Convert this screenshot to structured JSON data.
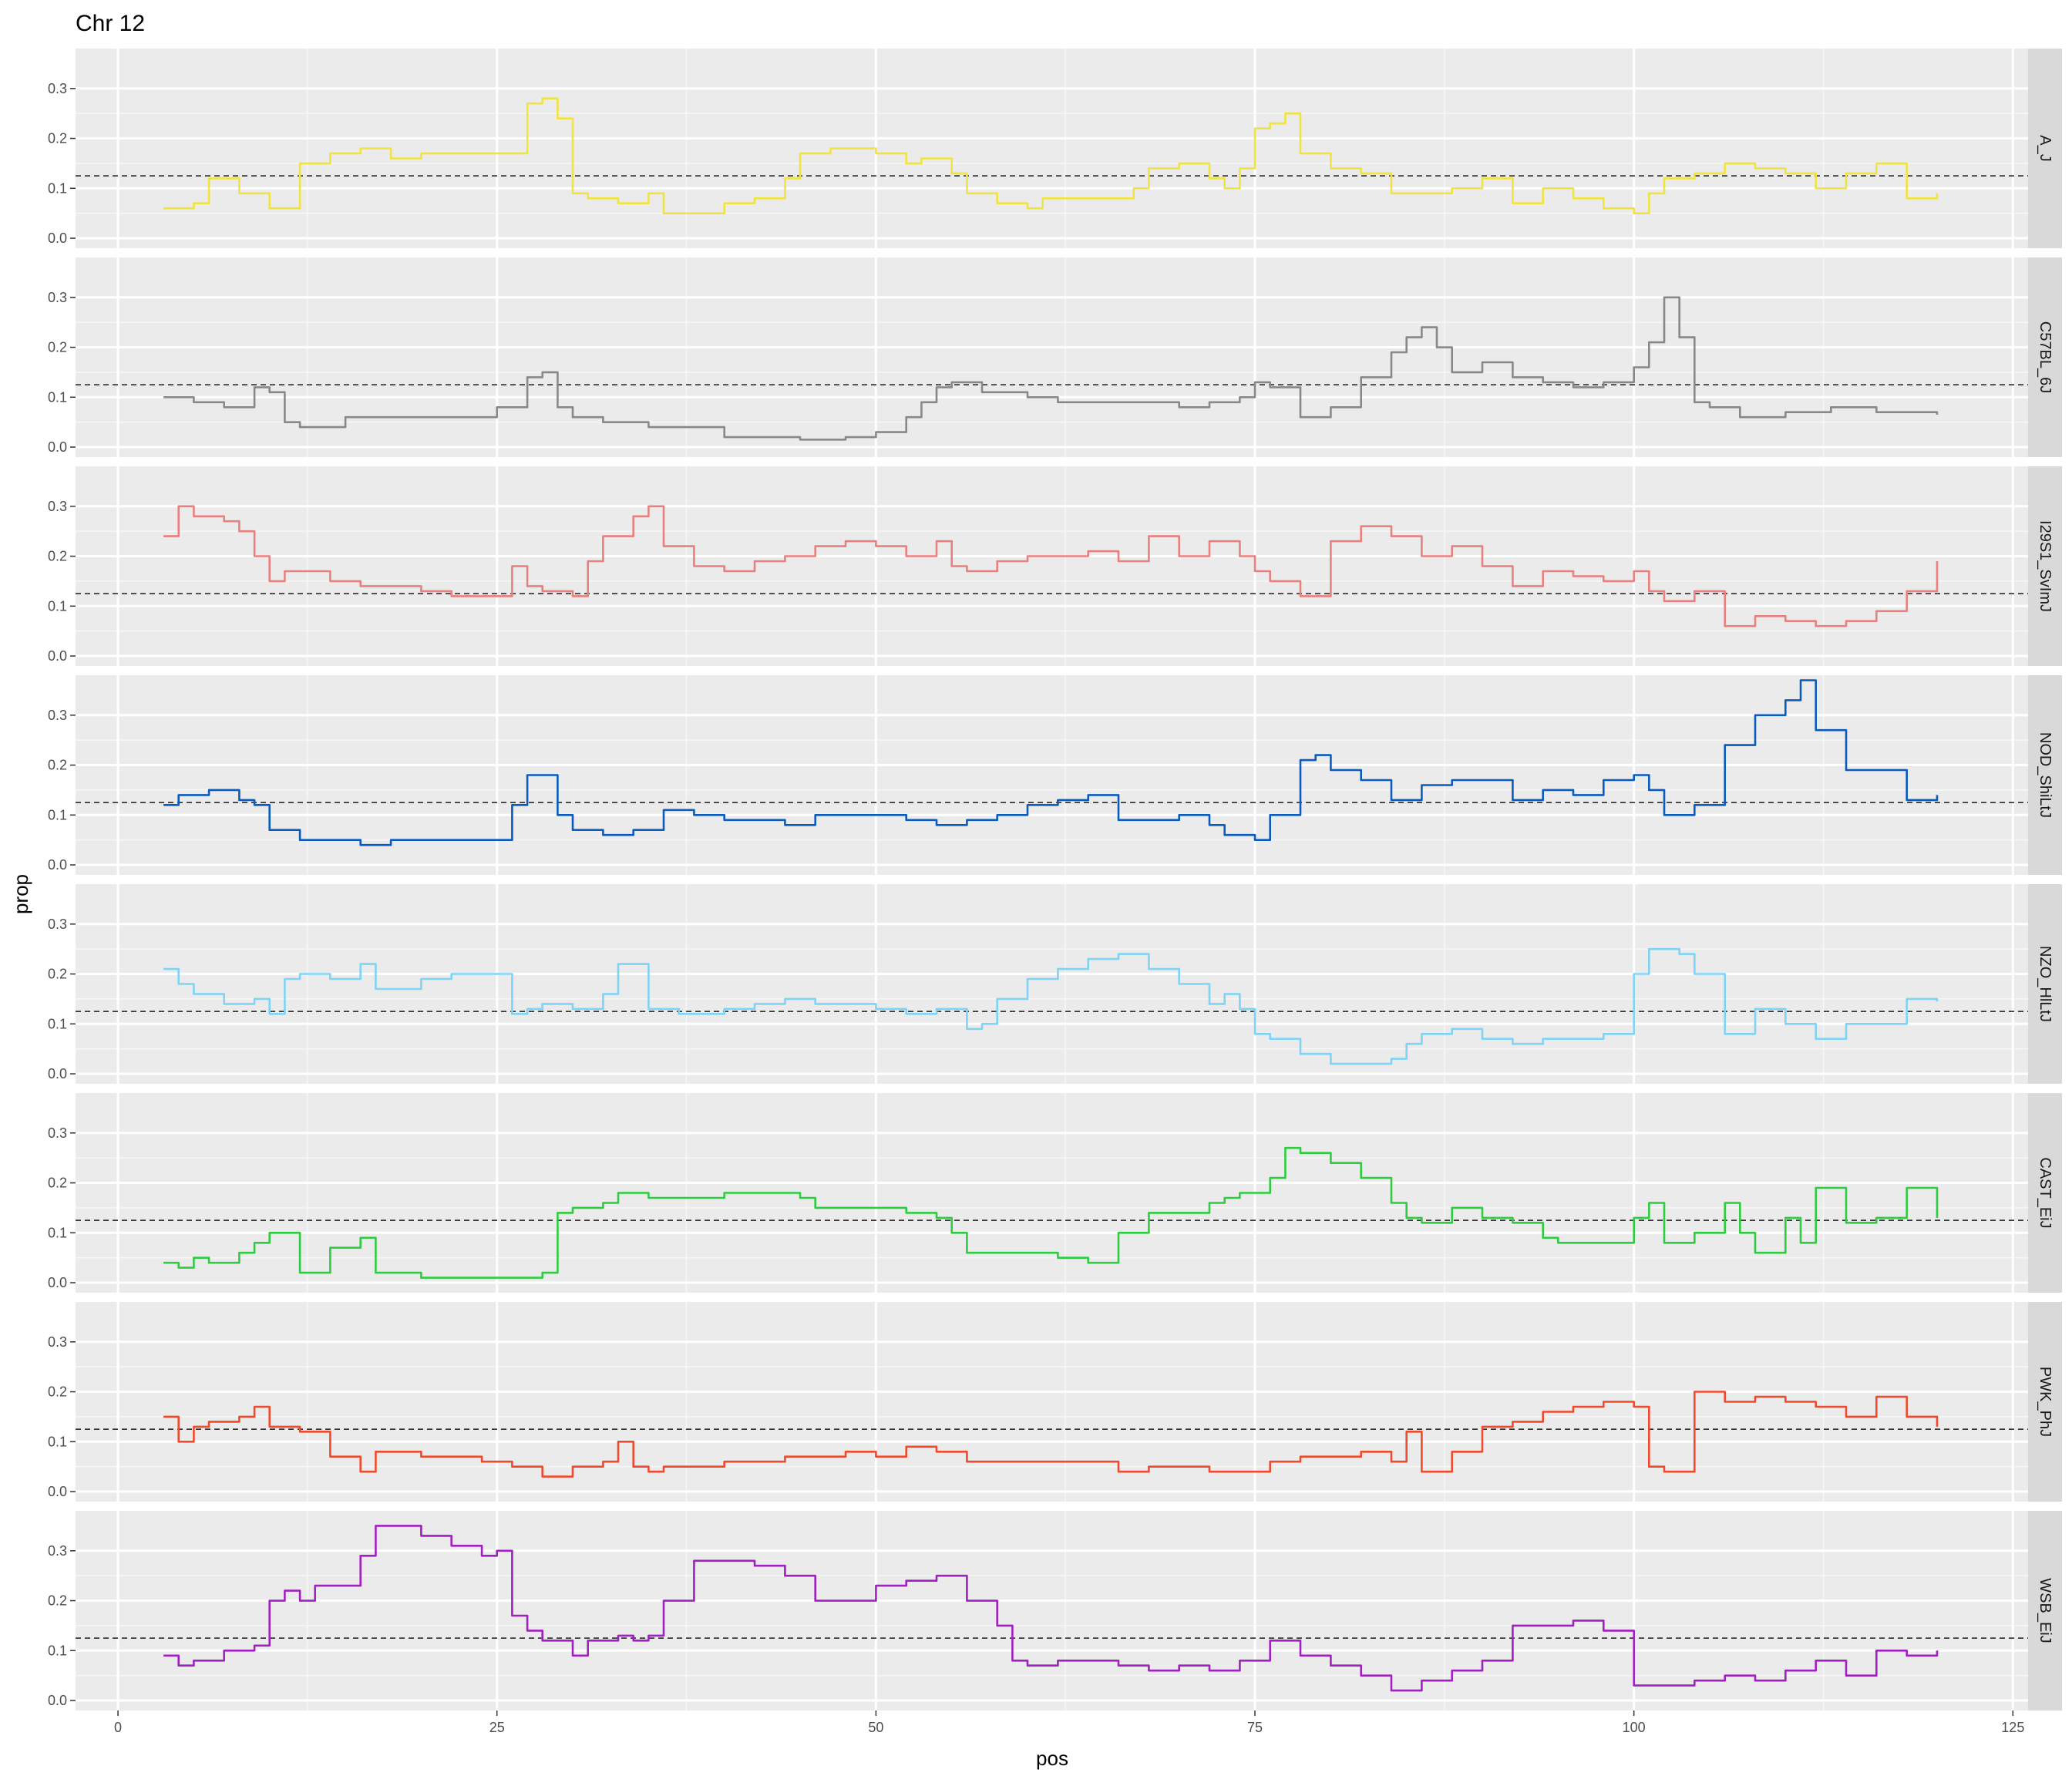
{
  "chart_data": {
    "type": "line",
    "title": "Chr 12",
    "xlabel": "pos",
    "ylabel": "prop",
    "xlim": [
      -2.8,
      126
    ],
    "ylim": [
      -0.02,
      0.38
    ],
    "x_ticks": [
      0,
      25,
      50,
      75,
      100,
      125
    ],
    "x_tick_labels": [
      "0",
      "25",
      "50",
      "75",
      "100",
      "125"
    ],
    "y_ticks": [
      0,
      0.1,
      0.2,
      0.3
    ],
    "y_tick_labels": [
      "0.0",
      "0.1",
      "0.2",
      "0.3"
    ],
    "reference_line": 0.125,
    "grid": true,
    "legend": "none",
    "facets": "rows",
    "series": [
      {
        "name": "A_J",
        "color": "#F0E442",
        "x": [
          3,
          5,
          6,
          8,
          10,
          11,
          12,
          14,
          16,
          18,
          20,
          22,
          24,
          26,
          27,
          28,
          29,
          30,
          31,
          33,
          35,
          36,
          38,
          40,
          42,
          44,
          45,
          47,
          50,
          52,
          53,
          55,
          56,
          58,
          60,
          61,
          63,
          65,
          67,
          68,
          70,
          72,
          73,
          74,
          75,
          76,
          77,
          78,
          80,
          82,
          84,
          86,
          88,
          90,
          91,
          92,
          94,
          96,
          98,
          100,
          101,
          102,
          104,
          106,
          108,
          110,
          112,
          114,
          116,
          118,
          120
        ],
        "y": [
          0.06,
          0.07,
          0.12,
          0.09,
          0.06,
          0.06,
          0.15,
          0.17,
          0.18,
          0.16,
          0.17,
          0.17,
          0.17,
          0.17,
          0.27,
          0.28,
          0.24,
          0.09,
          0.08,
          0.07,
          0.09,
          0.05,
          0.05,
          0.07,
          0.08,
          0.12,
          0.17,
          0.18,
          0.17,
          0.15,
          0.16,
          0.13,
          0.09,
          0.07,
          0.06,
          0.08,
          0.08,
          0.08,
          0.1,
          0.14,
          0.15,
          0.12,
          0.1,
          0.14,
          0.22,
          0.23,
          0.25,
          0.17,
          0.14,
          0.13,
          0.09,
          0.09,
          0.1,
          0.12,
          0.12,
          0.07,
          0.1,
          0.08,
          0.06,
          0.05,
          0.09,
          0.12,
          0.13,
          0.15,
          0.14,
          0.13,
          0.1,
          0.13,
          0.15,
          0.08,
          0.09
        ]
      },
      {
        "name": "C57BL_6J",
        "color": "#888888",
        "x": [
          3,
          5,
          7,
          9,
          10,
          11,
          12,
          13,
          15,
          16,
          18,
          20,
          22,
          25,
          27,
          28,
          29,
          30,
          32,
          35,
          38,
          40,
          42,
          45,
          48,
          50,
          52,
          53,
          54,
          55,
          57,
          60,
          62,
          65,
          68,
          70,
          72,
          74,
          75,
          76,
          78,
          80,
          82,
          84,
          85,
          86,
          87,
          88,
          90,
          92,
          94,
          96,
          98,
          100,
          101,
          102,
          103,
          104,
          105,
          107,
          110,
          113,
          116,
          118,
          120
        ],
        "y": [
          0.1,
          0.09,
          0.08,
          0.12,
          0.11,
          0.05,
          0.04,
          0.04,
          0.06,
          0.06,
          0.06,
          0.06,
          0.06,
          0.08,
          0.14,
          0.15,
          0.08,
          0.06,
          0.05,
          0.04,
          0.04,
          0.02,
          0.02,
          0.015,
          0.02,
          0.03,
          0.06,
          0.09,
          0.12,
          0.13,
          0.11,
          0.1,
          0.09,
          0.09,
          0.09,
          0.08,
          0.09,
          0.1,
          0.13,
          0.12,
          0.06,
          0.08,
          0.14,
          0.19,
          0.22,
          0.24,
          0.2,
          0.15,
          0.17,
          0.14,
          0.13,
          0.12,
          0.13,
          0.16,
          0.21,
          0.3,
          0.22,
          0.09,
          0.08,
          0.06,
          0.07,
          0.08,
          0.07,
          0.07,
          0.065
        ]
      },
      {
        "name": "I29S1_SvImJ",
        "color": "#E8807F",
        "x": [
          3,
          4,
          5,
          7,
          8,
          9,
          10,
          11,
          12,
          14,
          16,
          18,
          20,
          22,
          25,
          26,
          27,
          28,
          30,
          31,
          32,
          34,
          35,
          36,
          38,
          40,
          42,
          44,
          46,
          48,
          50,
          52,
          54,
          55,
          56,
          58,
          60,
          62,
          64,
          66,
          68,
          70,
          72,
          74,
          75,
          76,
          78,
          80,
          82,
          84,
          86,
          88,
          90,
          92,
          94,
          96,
          98,
          100,
          101,
          102,
          104,
          106,
          108,
          110,
          112,
          114,
          116,
          118,
          120
        ],
        "y": [
          0.24,
          0.3,
          0.28,
          0.27,
          0.25,
          0.2,
          0.15,
          0.17,
          0.17,
          0.15,
          0.14,
          0.14,
          0.13,
          0.12,
          0.12,
          0.18,
          0.14,
          0.13,
          0.12,
          0.19,
          0.24,
          0.28,
          0.3,
          0.22,
          0.18,
          0.17,
          0.19,
          0.2,
          0.22,
          0.23,
          0.22,
          0.2,
          0.23,
          0.18,
          0.17,
          0.19,
          0.2,
          0.2,
          0.21,
          0.19,
          0.24,
          0.2,
          0.23,
          0.2,
          0.17,
          0.15,
          0.12,
          0.23,
          0.26,
          0.24,
          0.2,
          0.22,
          0.18,
          0.14,
          0.17,
          0.16,
          0.15,
          0.17,
          0.13,
          0.11,
          0.13,
          0.06,
          0.08,
          0.07,
          0.06,
          0.07,
          0.09,
          0.13,
          0.19
        ]
      },
      {
        "name": "NOD_ShiLtJ",
        "color": "#0a5bbe",
        "x": [
          3,
          4,
          6,
          8,
          9,
          10,
          12,
          14,
          16,
          18,
          20,
          22,
          25,
          26,
          27,
          28,
          29,
          30,
          32,
          34,
          36,
          38,
          40,
          42,
          44,
          46,
          48,
          50,
          52,
          54,
          56,
          58,
          60,
          62,
          64,
          66,
          68,
          70,
          72,
          73,
          74,
          75,
          76,
          78,
          79,
          80,
          82,
          84,
          86,
          88,
          90,
          92,
          94,
          96,
          98,
          100,
          101,
          102,
          104,
          106,
          108,
          110,
          111,
          112,
          114,
          116,
          118,
          120
        ],
        "y": [
          0.12,
          0.14,
          0.15,
          0.13,
          0.12,
          0.07,
          0.05,
          0.05,
          0.04,
          0.05,
          0.05,
          0.05,
          0.05,
          0.12,
          0.18,
          0.18,
          0.1,
          0.07,
          0.06,
          0.07,
          0.11,
          0.1,
          0.09,
          0.09,
          0.08,
          0.1,
          0.1,
          0.1,
          0.09,
          0.08,
          0.09,
          0.1,
          0.12,
          0.13,
          0.14,
          0.09,
          0.09,
          0.1,
          0.08,
          0.06,
          0.06,
          0.05,
          0.1,
          0.21,
          0.22,
          0.19,
          0.17,
          0.13,
          0.16,
          0.17,
          0.17,
          0.13,
          0.15,
          0.14,
          0.17,
          0.18,
          0.15,
          0.1,
          0.12,
          0.24,
          0.3,
          0.33,
          0.37,
          0.27,
          0.19,
          0.19,
          0.13,
          0.14
        ]
      },
      {
        "name": "NZO_HlLtJ",
        "color": "#7FD3F5",
        "x": [
          3,
          4,
          5,
          7,
          9,
          10,
          11,
          12,
          14,
          16,
          17,
          18,
          20,
          22,
          24,
          25,
          26,
          27,
          28,
          30,
          32,
          33,
          35,
          37,
          40,
          42,
          44,
          46,
          48,
          50,
          52,
          54,
          56,
          57,
          58,
          60,
          62,
          64,
          66,
          68,
          70,
          72,
          73,
          74,
          75,
          76,
          78,
          80,
          82,
          84,
          85,
          86,
          88,
          90,
          92,
          94,
          96,
          98,
          100,
          101,
          102,
          103,
          104,
          106,
          108,
          110,
          112,
          114,
          116,
          118,
          120
        ],
        "y": [
          0.21,
          0.18,
          0.16,
          0.14,
          0.15,
          0.12,
          0.19,
          0.2,
          0.19,
          0.22,
          0.17,
          0.17,
          0.19,
          0.2,
          0.2,
          0.2,
          0.12,
          0.13,
          0.14,
          0.13,
          0.16,
          0.22,
          0.13,
          0.12,
          0.13,
          0.14,
          0.15,
          0.14,
          0.14,
          0.13,
          0.12,
          0.13,
          0.09,
          0.1,
          0.15,
          0.19,
          0.21,
          0.23,
          0.24,
          0.21,
          0.18,
          0.14,
          0.16,
          0.13,
          0.08,
          0.07,
          0.04,
          0.02,
          0.02,
          0.03,
          0.06,
          0.08,
          0.09,
          0.07,
          0.06,
          0.07,
          0.07,
          0.08,
          0.2,
          0.25,
          0.25,
          0.24,
          0.2,
          0.08,
          0.13,
          0.1,
          0.07,
          0.1,
          0.1,
          0.15,
          0.145
        ]
      },
      {
        "name": "CAST_EiJ",
        "color": "#2ECC40",
        "x": [
          3,
          4,
          5,
          6,
          7,
          8,
          9,
          10,
          11,
          12,
          14,
          16,
          17,
          20,
          24,
          27,
          28,
          29,
          30,
          32,
          33,
          35,
          37,
          40,
          45,
          46,
          48,
          50,
          52,
          54,
          55,
          56,
          57,
          58,
          60,
          62,
          64,
          66,
          68,
          70,
          72,
          73,
          74,
          75,
          76,
          77,
          78,
          80,
          82,
          84,
          85,
          86,
          88,
          90,
          92,
          94,
          95,
          96,
          97,
          98,
          100,
          101,
          102,
          104,
          106,
          107,
          108,
          110,
          111,
          112,
          114,
          116,
          118,
          120
        ],
        "y": [
          0.04,
          0.03,
          0.05,
          0.04,
          0.04,
          0.06,
          0.08,
          0.1,
          0.1,
          0.02,
          0.07,
          0.09,
          0.02,
          0.01,
          0.01,
          0.01,
          0.02,
          0.14,
          0.15,
          0.16,
          0.18,
          0.17,
          0.17,
          0.18,
          0.17,
          0.15,
          0.15,
          0.15,
          0.14,
          0.13,
          0.1,
          0.06,
          0.06,
          0.06,
          0.06,
          0.05,
          0.04,
          0.1,
          0.14,
          0.14,
          0.16,
          0.17,
          0.18,
          0.18,
          0.21,
          0.27,
          0.26,
          0.24,
          0.21,
          0.16,
          0.13,
          0.12,
          0.15,
          0.13,
          0.12,
          0.09,
          0.08,
          0.08,
          0.08,
          0.08,
          0.13,
          0.16,
          0.08,
          0.1,
          0.16,
          0.1,
          0.06,
          0.13,
          0.08,
          0.19,
          0.12,
          0.13,
          0.19,
          0.13
        ]
      },
      {
        "name": "PWK_PhJ",
        "color": "#F04A2E",
        "x": [
          3,
          4,
          5,
          6,
          8,
          9,
          10,
          11,
          12,
          14,
          16,
          17,
          18,
          20,
          22,
          24,
          26,
          28,
          30,
          32,
          33,
          34,
          35,
          36,
          38,
          40,
          42,
          44,
          46,
          48,
          50,
          52,
          54,
          56,
          58,
          60,
          62,
          64,
          66,
          68,
          70,
          72,
          74,
          76,
          78,
          80,
          82,
          84,
          85,
          86,
          88,
          90,
          92,
          94,
          96,
          98,
          100,
          101,
          102,
          103,
          104,
          106,
          108,
          110,
          112,
          114,
          116,
          118,
          120
        ],
        "y": [
          0.15,
          0.1,
          0.13,
          0.14,
          0.15,
          0.17,
          0.13,
          0.13,
          0.12,
          0.07,
          0.04,
          0.08,
          0.08,
          0.07,
          0.07,
          0.06,
          0.05,
          0.03,
          0.05,
          0.06,
          0.1,
          0.05,
          0.04,
          0.05,
          0.05,
          0.06,
          0.06,
          0.07,
          0.07,
          0.08,
          0.07,
          0.09,
          0.08,
          0.06,
          0.06,
          0.06,
          0.06,
          0.06,
          0.04,
          0.05,
          0.05,
          0.04,
          0.04,
          0.06,
          0.07,
          0.07,
          0.08,
          0.06,
          0.12,
          0.04,
          0.08,
          0.13,
          0.14,
          0.16,
          0.17,
          0.18,
          0.17,
          0.05,
          0.04,
          0.04,
          0.2,
          0.18,
          0.19,
          0.18,
          0.17,
          0.15,
          0.19,
          0.15,
          0.13
        ]
      },
      {
        "name": "WSB_EiJ",
        "color": "#A020C0",
        "x": [
          3,
          4,
          5,
          7,
          9,
          10,
          11,
          12,
          13,
          14,
          15,
          16,
          17,
          18,
          20,
          22,
          24,
          25,
          26,
          27,
          28,
          30,
          31,
          33,
          34,
          35,
          36,
          38,
          40,
          42,
          44,
          46,
          48,
          50,
          52,
          54,
          56,
          58,
          59,
          60,
          62,
          64,
          66,
          68,
          70,
          72,
          74,
          76,
          78,
          80,
          82,
          84,
          86,
          88,
          90,
          92,
          94,
          96,
          98,
          100,
          102,
          104,
          106,
          108,
          110,
          112,
          114,
          116,
          118,
          120
        ],
        "y": [
          0.09,
          0.07,
          0.08,
          0.1,
          0.11,
          0.2,
          0.22,
          0.2,
          0.23,
          0.23,
          0.23,
          0.29,
          0.35,
          0.35,
          0.33,
          0.31,
          0.29,
          0.3,
          0.17,
          0.14,
          0.12,
          0.09,
          0.12,
          0.13,
          0.12,
          0.13,
          0.2,
          0.28,
          0.28,
          0.27,
          0.25,
          0.2,
          0.2,
          0.23,
          0.24,
          0.25,
          0.2,
          0.15,
          0.08,
          0.07,
          0.08,
          0.08,
          0.07,
          0.06,
          0.07,
          0.06,
          0.08,
          0.12,
          0.09,
          0.07,
          0.05,
          0.02,
          0.04,
          0.06,
          0.08,
          0.15,
          0.15,
          0.16,
          0.14,
          0.03,
          0.03,
          0.04,
          0.05,
          0.04,
          0.06,
          0.08,
          0.05,
          0.1,
          0.09,
          0.1
        ]
      }
    ]
  }
}
